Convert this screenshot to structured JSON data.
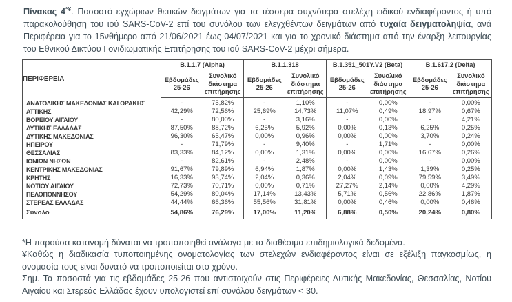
{
  "colors": {
    "text_title": "#3f4d56",
    "text_table": "#383838",
    "border": "#4f4f4f"
  },
  "title": {
    "bold_label": "Πίνακας 4",
    "superscript": "*¥",
    "segment_main": ". Ποσοστό εγχώριων θετικών δειγμάτων για τα τέσσερα συχνότερα στελέχη ειδικού ενδιαφέροντος ή υπό παρακολούθηση του ιού SARS-CoV-2 επί του συνόλου των ελεγχθέντων δειγμάτων από ",
    "bold_inline": "τυχαία δειγματοληψία",
    "segment_tail": ", ανά Περιφέρεια για το 15νθήμερο από 21/06/2021 έως 04/07/2021 και για το χρονικό διάστημα από την έναρξη λειτουργίας του Εθνικού Δικτύου Γονιδιωματικής Επιτήρησης του ιού SARS-CoV-2 μέχρι σήμερα."
  },
  "table": {
    "region_header": "ΠΕΡΙΦΕΡΕΙΑ",
    "groups": [
      {
        "label": "B.1.1.7  (Alpha)"
      },
      {
        "label": "B.1.1.318"
      },
      {
        "label": "B.1.351_501Y.V2 (Beta)"
      },
      {
        "label": "B.1.617.2 (Delta)"
      }
    ],
    "subheaders": {
      "weeks": "Εβδομάδες 25-26",
      "total": "Συνολικό διάστημα επιτήρησης"
    },
    "rows": [
      {
        "region": "ΑΝΑΤΟΛΙΚΗΣ ΜΑΚΕΔΟΝΙΑΣ ΚΑΙ ΘΡΑΚΗΣ",
        "values": [
          "-",
          "75,82%",
          "-",
          "1,10%",
          "-",
          "0,00%",
          "-",
          "0,00%"
        ]
      },
      {
        "region": "ΑΤΤΙΚΗΣ",
        "values": [
          "42,29%",
          "72,56%",
          "25,69%",
          "14,73%",
          "11,07%",
          "0,49%",
          "18,97%",
          "0,67%"
        ]
      },
      {
        "region": "ΒΟΡΕΙΟΥ ΑΙΓΑΙΟΥ",
        "values": [
          "-",
          "80,00%",
          "-",
          "3,16%",
          "-",
          "0,00%",
          "-",
          "4,21%"
        ]
      },
      {
        "region": "ΔΥΤΙΚΗΣ ΕΛΛΑΔΑΣ",
        "values": [
          "87,50%",
          "88,72%",
          "6,25%",
          "5,92%",
          "0,00%",
          "0,13%",
          "6,25%",
          "0,25%"
        ]
      },
      {
        "region": "ΔΥΤΙΚΗΣ ΜΑΚΕΔΟΝΙΑΣ",
        "values": [
          "96,30%",
          "65,47%",
          "0,00%",
          "0,96%",
          "0,00%",
          "0,00%",
          "3,70%",
          "0,24%"
        ]
      },
      {
        "region": "ΗΠΕΙΡΟΥ",
        "values": [
          "-",
          "71,79%",
          "-",
          "9,40%",
          "-",
          "1,71%",
          "-",
          "0,00%"
        ]
      },
      {
        "region": "ΘΕΣΣΑΛΙΑΣ",
        "values": [
          "83,33%",
          "84,12%",
          "0,00%",
          "1,31%",
          "0,00%",
          "0,00%",
          "16,67%",
          "0,26%"
        ]
      },
      {
        "region": "ΙΟΝΙΩΝ ΝΗΣΩΝ",
        "values": [
          "-",
          "82,61%",
          "-",
          "2,48%",
          "-",
          "0,00%",
          "-",
          "0,00%"
        ]
      },
      {
        "region": "ΚΕΝΤΡΙΚΗΣ ΜΑΚΕΔΟΝΙΑΣ",
        "values": [
          "91,67%",
          "79,89%",
          "6,94%",
          "1,87%",
          "0,00%",
          "1,43%",
          "1,39%",
          "0,25%"
        ]
      },
      {
        "region": "ΚΡΗΤΗΣ",
        "values": [
          "16,33%",
          "93,74%",
          "2,04%",
          "0,36%",
          "2,04%",
          "0,09%",
          "79,59%",
          "3,49%"
        ]
      },
      {
        "region": "ΝΟΤΙΟΥ ΑΙΓΑΙΟΥ",
        "values": [
          "72,73%",
          "70,71%",
          "0,00%",
          "0,71%",
          "27,27%",
          "2,14%",
          "0,00%",
          "4,29%"
        ]
      },
      {
        "region": "ΠΕΛΟΠΟΝΝΗΣΟΥ",
        "values": [
          "54,29%",
          "80,04%",
          "17,14%",
          "13,43%",
          "5,71%",
          "0,56%",
          "22,86%",
          "1,87%"
        ]
      },
      {
        "region": "ΣΤΕΡΕΑΣ ΕΛΛΑΔΑΣ",
        "values": [
          "44,44%",
          "66,36%",
          "55,56%",
          "31,81%",
          "0,00%",
          "0,46%",
          "0,00%",
          "0,46%"
        ]
      }
    ],
    "total_row": {
      "region": "Σύνολο",
      "values": [
        "54,86%",
        "76,29%",
        "17,00%",
        "11,20%",
        "6,88%",
        "0,50%",
        "20,24%",
        "0,80%"
      ]
    }
  },
  "footnotes": [
    "*Η παρούσα κατανομή δύναται να τροποποιηθεί ανάλογα με τα διαθέσιμα επιδημιολογικά δεδομένα.",
    "¥Καθώς η διαδικασία τυποποιημένης ονοματολογίας των στελεχών ενδιαφέροντος είναι σε εξέλιξη παγκοσμίως, η ονομασία τους είναι δυνατό να τροποποιείται στο χρόνο.",
    "Σημ. Τα ποσοστά για τις εβδομάδες 25-26 που αντιστοιχούν στις Περιφέρειες Δυτικής Μακεδονίας, Θεσσαλίας, Νοτίου Αιγαίου και Στερεάς Ελλάδας έχουν υπολογιστεί επί συνόλου δειγμάτων < 30."
  ]
}
